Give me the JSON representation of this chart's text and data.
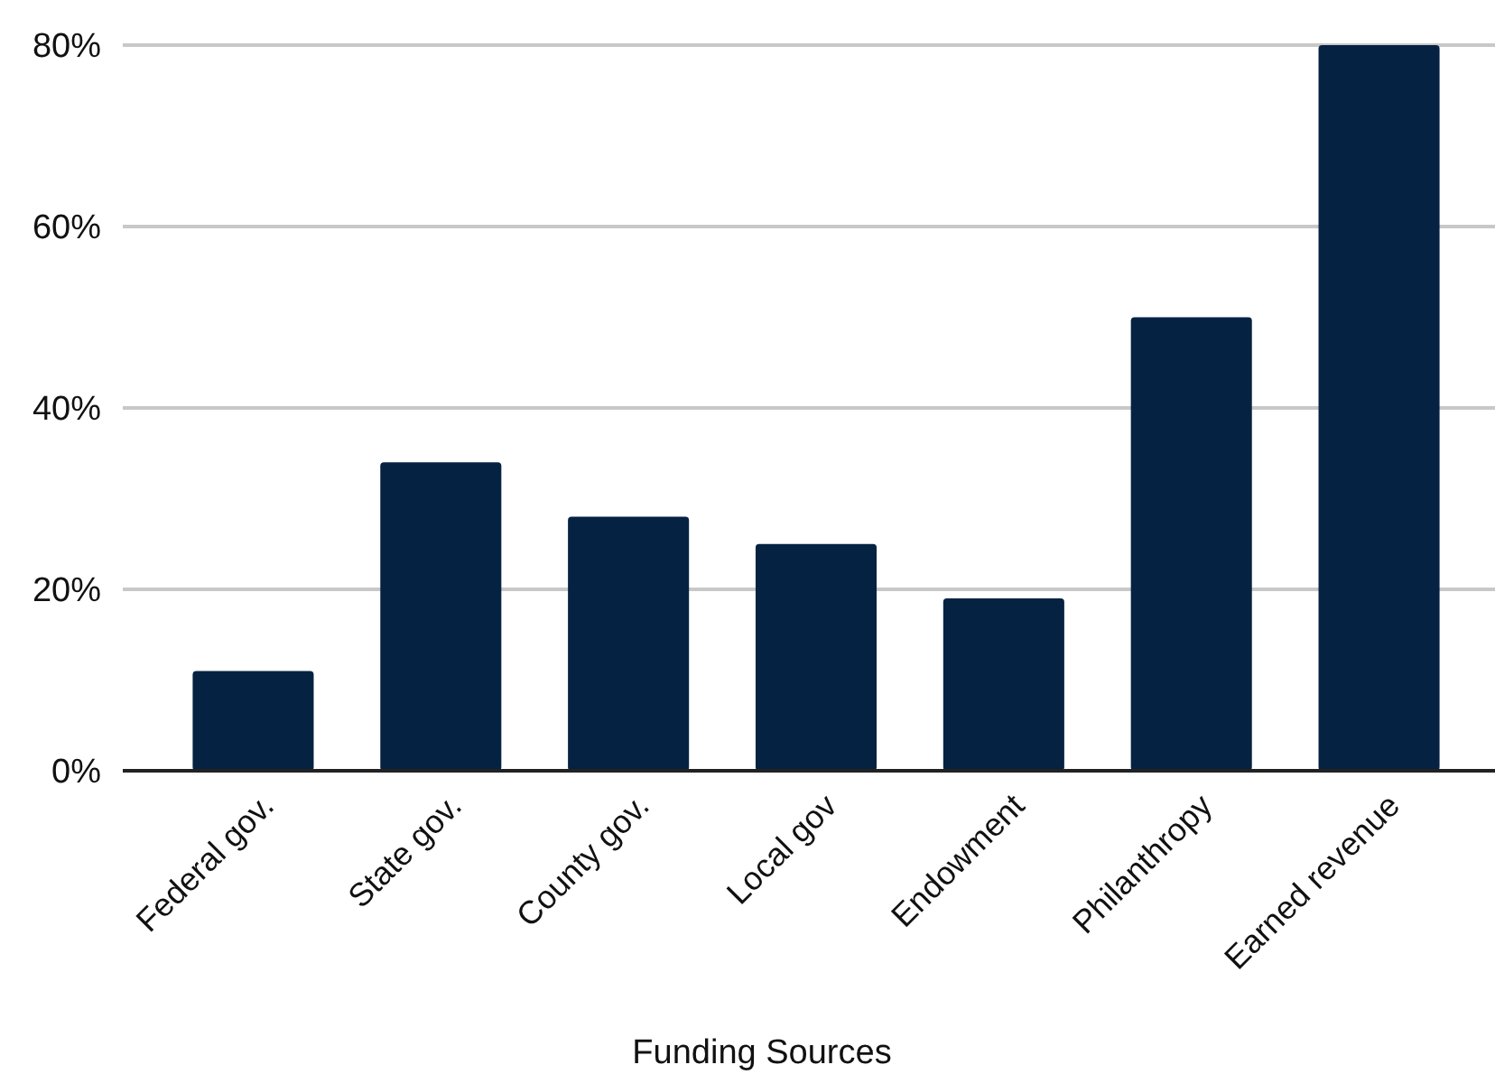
{
  "chart_data": {
    "type": "bar",
    "xlabel": "Funding Sources",
    "categories": [
      "Federal gov.",
      "State gov.",
      "County gov.",
      "Local gov",
      "Endowment",
      "Philanthropy",
      "Earned revenue"
    ],
    "values": [
      11,
      34,
      28,
      25,
      19,
      50,
      80
    ],
    "color": "#062242",
    "ylim": [
      0,
      80
    ],
    "yticks": [
      {
        "value": 0,
        "label": "0%"
      },
      {
        "value": 20,
        "label": "20%"
      },
      {
        "value": 40,
        "label": "40%"
      },
      {
        "value": 60,
        "label": "60%"
      },
      {
        "value": 80,
        "label": "80%"
      }
    ],
    "grid": "y"
  }
}
